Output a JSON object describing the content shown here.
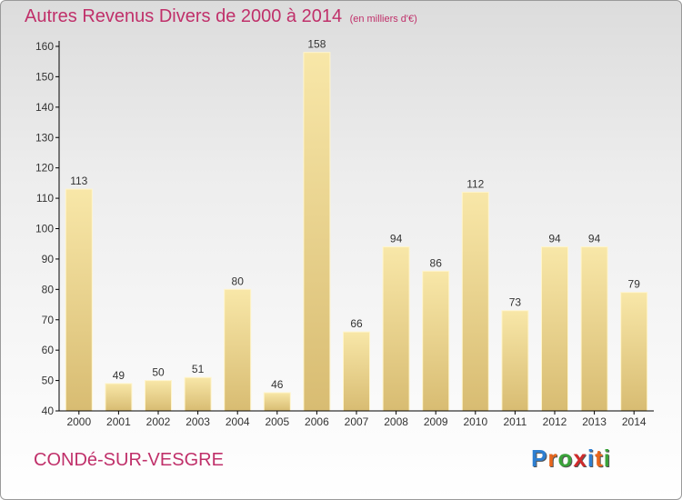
{
  "title": "Autres Revenus Divers de 2000 à 2014",
  "subtitle": "(en milliers d'€)",
  "location": "CONDé-SUR-VESGRE",
  "brand": {
    "letters": [
      "P",
      "r",
      "o",
      "x",
      "i",
      "t",
      "i"
    ],
    "colors": [
      "#2e7fd1",
      "#e8661c",
      "#3aa33a",
      "#d02b2b",
      "#2e7fd1",
      "#e8661c",
      "#3aa33a"
    ]
  },
  "colors": {
    "title": "#c0306a",
    "bar_light": "#f8e7a8",
    "bar_dark": "#d8bc72",
    "axis": "#000000"
  },
  "chart_data": {
    "type": "bar",
    "categories": [
      "2000",
      "2001",
      "2002",
      "2003",
      "2004",
      "2005",
      "2006",
      "2007",
      "2008",
      "2009",
      "2010",
      "2011",
      "2012",
      "2013",
      "2014"
    ],
    "values": [
      113,
      49,
      50,
      51,
      80,
      46,
      158,
      66,
      94,
      86,
      112,
      73,
      94,
      94,
      79
    ],
    "ylim": [
      40,
      160
    ],
    "yticks": [
      40,
      50,
      60,
      70,
      80,
      90,
      100,
      110,
      120,
      130,
      140,
      150,
      160
    ],
    "grid": false,
    "legend": "none"
  }
}
